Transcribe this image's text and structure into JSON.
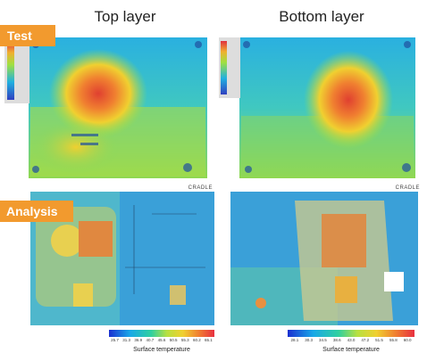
{
  "header": {
    "columns": [
      "Top layer",
      "Bottom layer"
    ]
  },
  "rows": [
    {
      "label": "Test"
    },
    {
      "label": "Analysis"
    }
  ],
  "analysis": [
    {
      "brand": "CRADLE",
      "colorbar": {
        "ticks": [
          "25.7",
          "31.3",
          "36.9",
          "40.7",
          "45.6",
          "50.5",
          "55.3",
          "60.2",
          "65.1"
        ],
        "caption": "Surface temperature"
      }
    },
    {
      "brand": "CRADLE",
      "colorbar": {
        "ticks": [
          "28.1",
          "30.3",
          "34.5",
          "38.6",
          "43.0",
          "47.2",
          "51.5",
          "55.8",
          "60.0"
        ],
        "caption": "Surface temperature"
      }
    }
  ]
}
